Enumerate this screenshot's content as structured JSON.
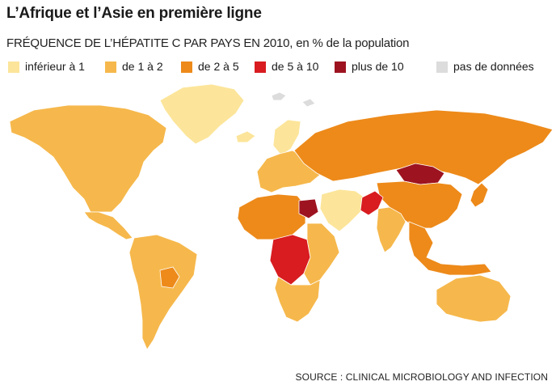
{
  "title": "L’Afrique et l’Asie en première ligne",
  "subtitle": "FRÉQUENCE DE L’HÉPATITE C PAR PAYS EN 2010, en % de la population",
  "legend": [
    {
      "label": "inférieur à 1",
      "color": "#fce59a"
    },
    {
      "label": "de 1 à 2",
      "color": "#f6b84c"
    },
    {
      "label": "de 2 à 5",
      "color": "#ed8a1a"
    },
    {
      "label": "de 5 à 10",
      "color": "#d81c20"
    },
    {
      "label": "plus de  10",
      "color": "#9d1320"
    },
    {
      "label": "pas de données",
      "color": "#dcdcdc"
    }
  ],
  "map": {
    "regions": [
      {
        "id": "greenland",
        "category": "lt1"
      },
      {
        "id": "north-america",
        "category": "1to2"
      },
      {
        "id": "central-america",
        "category": "1to2"
      },
      {
        "id": "south-america",
        "category": "1to2"
      },
      {
        "id": "bolivia",
        "category": "2to5"
      },
      {
        "id": "europe",
        "category": "1to2"
      },
      {
        "id": "iceland-scandinavia",
        "category": "lt1"
      },
      {
        "id": "russia",
        "category": "2to5"
      },
      {
        "id": "mongolia",
        "category": "gt10"
      },
      {
        "id": "china",
        "category": "2to5"
      },
      {
        "id": "india",
        "category": "1to2"
      },
      {
        "id": "pakistan",
        "category": "5to10"
      },
      {
        "id": "middle-east",
        "category": "lt1"
      },
      {
        "id": "egypt",
        "category": "gt10"
      },
      {
        "id": "north-africa",
        "category": "2to5"
      },
      {
        "id": "central-africa",
        "category": "5to10"
      },
      {
        "id": "east-africa",
        "category": "1to2"
      },
      {
        "id": "southern-africa",
        "category": "1to2"
      },
      {
        "id": "southeast-asia",
        "category": "2to5"
      },
      {
        "id": "japan",
        "category": "2to5"
      },
      {
        "id": "australia",
        "category": "1to2"
      },
      {
        "id": "antarctica-islands",
        "category": "nodata"
      }
    ]
  },
  "source": "SOURCE : CLINICAL MICROBIOLOGY AND INFECTION"
}
